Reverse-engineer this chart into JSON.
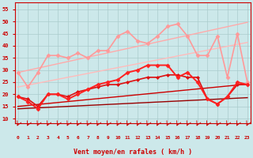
{
  "xlabel": "Vent moyen/en rafales ( km/h )",
  "bg_color": "#cce8ea",
  "grid_color": "#aacccc",
  "x": [
    0,
    1,
    2,
    3,
    4,
    5,
    6,
    7,
    8,
    9,
    10,
    11,
    12,
    13,
    14,
    15,
    16,
    17,
    18,
    19,
    20,
    21,
    22,
    23
  ],
  "ylim": [
    8,
    58
  ],
  "yticks": [
    10,
    15,
    20,
    25,
    30,
    35,
    40,
    45,
    50,
    55
  ],
  "tick_color": "#cc0000",
  "label_color": "#cc0000",
  "axis_color": "#cc0000",
  "lines": [
    {
      "y": [
        29,
        29.9,
        30.8,
        31.7,
        32.6,
        33.5,
        34.4,
        35.3,
        36.2,
        37.1,
        38.0,
        38.9,
        39.8,
        40.7,
        41.6,
        42.5,
        43.4,
        44.3,
        45.2,
        46.1,
        47.0,
        47.9,
        48.8,
        49.7
      ],
      "color": "#ffaaaa",
      "lw": 1.0,
      "marker": null,
      "ms": 0,
      "zorder": 2,
      "ls": "-"
    },
    {
      "y": [
        23,
        23.8,
        24.6,
        25.4,
        26.2,
        27.0,
        27.8,
        28.6,
        29.4,
        30.2,
        31.0,
        31.8,
        32.6,
        33.4,
        34.2,
        35.0,
        35.8,
        36.6,
        37.4,
        38.2,
        39.0,
        39.8,
        40.6,
        41.4
      ],
      "color": "#ffbbbb",
      "lw": 1.0,
      "marker": null,
      "ms": 0,
      "zorder": 2,
      "ls": "-"
    },
    {
      "y": [
        29,
        23,
        29,
        36,
        36,
        35,
        37,
        35,
        38,
        38,
        44,
        46,
        42,
        41,
        44,
        48,
        49,
        44,
        36,
        36,
        44,
        27,
        45,
        25
      ],
      "color": "#ff9999",
      "lw": 1.2,
      "marker": "D",
      "ms": 2.5,
      "zorder": 3,
      "ls": "-"
    },
    {
      "y": [
        19,
        17,
        14,
        20,
        20,
        18,
        20,
        22,
        24,
        25,
        26,
        29,
        30,
        32,
        32,
        32,
        27,
        29,
        25,
        18,
        16,
        19,
        25,
        24
      ],
      "color": "#ff2020",
      "lw": 1.4,
      "marker": "D",
      "ms": 2.5,
      "zorder": 6,
      "ls": "-"
    },
    {
      "y": [
        19,
        18,
        15,
        20,
        20,
        19,
        21,
        22,
        23,
        24,
        24,
        25,
        26,
        27,
        27,
        28,
        28,
        27,
        27,
        18,
        16,
        19,
        24,
        24
      ],
      "color": "#dd1111",
      "lw": 1.2,
      "marker": "D",
      "ms": 2.0,
      "zorder": 5,
      "ls": "-"
    },
    {
      "y": [
        15,
        15.4,
        15.8,
        16.2,
        16.6,
        17.0,
        17.4,
        17.8,
        18.2,
        18.6,
        19.0,
        19.4,
        19.8,
        20.2,
        20.6,
        21.0,
        21.4,
        21.8,
        22.2,
        22.6,
        23.0,
        23.4,
        23.8,
        24.2
      ],
      "color": "#cc0000",
      "lw": 1.0,
      "marker": null,
      "ms": 0,
      "zorder": 1,
      "ls": "-"
    },
    {
      "y": [
        14,
        14.2,
        14.4,
        14.6,
        14.8,
        15.0,
        15.2,
        15.4,
        15.6,
        15.8,
        16.0,
        16.2,
        16.4,
        16.6,
        16.8,
        17.0,
        17.2,
        17.4,
        17.6,
        17.8,
        18.0,
        18.2,
        18.4,
        18.6
      ],
      "color": "#990000",
      "lw": 1.0,
      "marker": null,
      "ms": 0,
      "zorder": 1,
      "ls": "-"
    }
  ]
}
